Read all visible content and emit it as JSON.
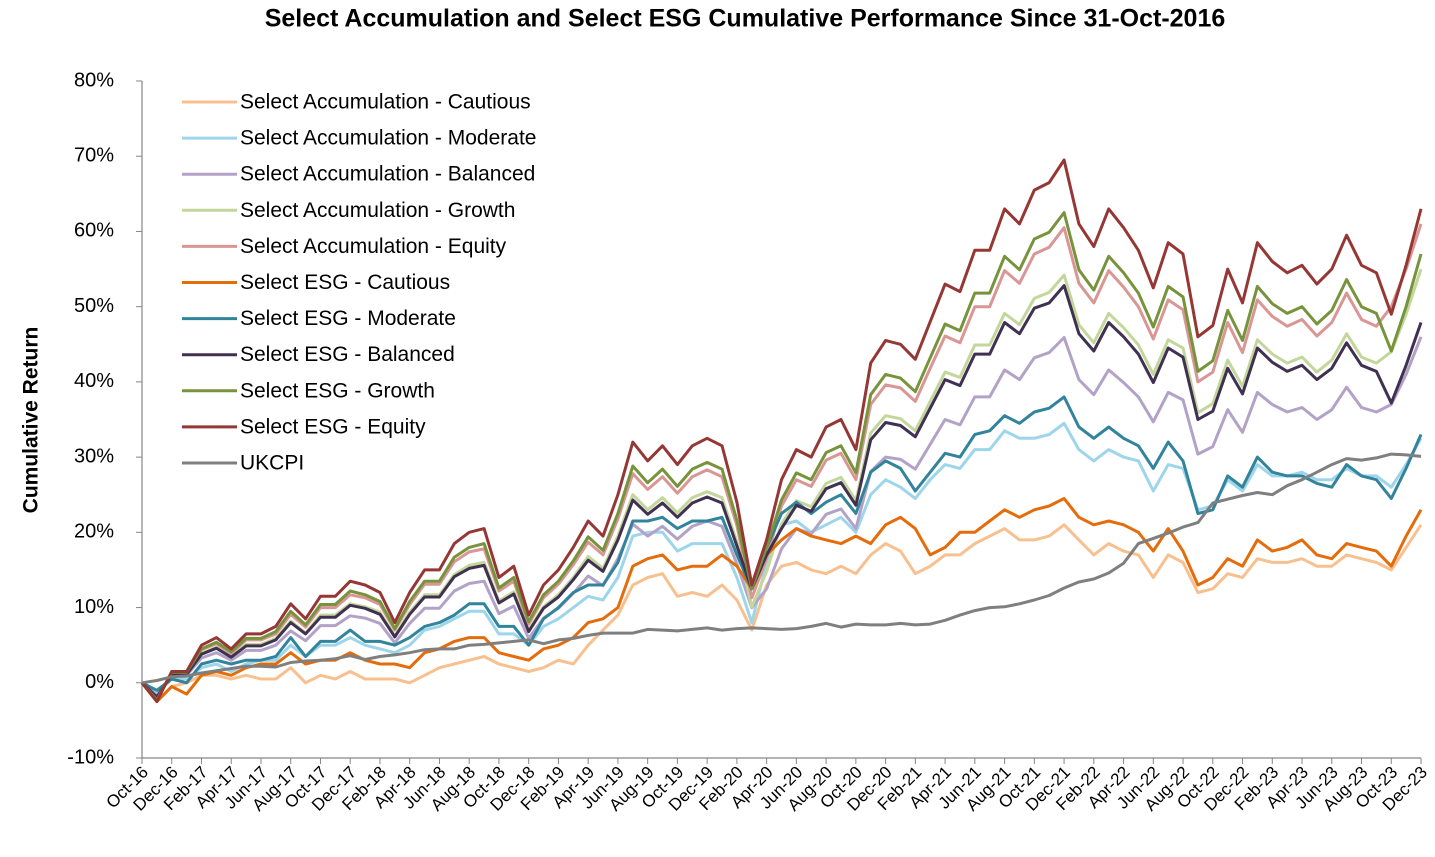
{
  "chart_data": {
    "type": "line",
    "title": "Select Accumulation  and Select ESG Cumulative Performance Since 31-Oct-2016",
    "y_label": "Cumulative Return",
    "legend": "upper left",
    "grid": false,
    "ylim": [
      -10,
      80
    ],
    "yticks": [
      {
        "value": -10,
        "label": "-10%"
      },
      {
        "value": 0,
        "label": "0%"
      },
      {
        "value": 10,
        "label": "10%"
      },
      {
        "value": 20,
        "label": "20%"
      },
      {
        "value": 30,
        "label": "30%"
      },
      {
        "value": 40,
        "label": "40%"
      },
      {
        "value": 50,
        "label": "50%"
      },
      {
        "value": 60,
        "label": "60%"
      },
      {
        "value": 70,
        "label": "70%"
      },
      {
        "value": 80,
        "label": "80%"
      }
    ],
    "categories": [
      "Oct-16",
      null,
      "Dec-16",
      null,
      "Feb-17",
      null,
      "Apr-17",
      null,
      "Jun-17",
      null,
      "Aug-17",
      null,
      "Oct-17",
      null,
      "Dec-17",
      null,
      "Feb-18",
      null,
      "Apr-18",
      null,
      "Jun-18",
      null,
      "Aug-18",
      null,
      "Oct-18",
      null,
      "Dec-18",
      null,
      "Feb-19",
      null,
      "Apr-19",
      null,
      "Jun-19",
      null,
      "Aug-19",
      null,
      "Oct-19",
      null,
      "Dec-19",
      null,
      "Feb-20",
      null,
      "Apr-20",
      null,
      "Jun-20",
      null,
      "Aug-20",
      null,
      "Oct-20",
      null,
      "Dec-20",
      null,
      "Feb-21",
      null,
      "Apr-21",
      null,
      "Jun-21",
      null,
      "Aug-21",
      null,
      "Oct-21",
      null,
      "Dec-21",
      null,
      "Feb-22",
      null,
      "Apr-22",
      null,
      "Jun-22",
      null,
      "Aug-22",
      null,
      "Oct-22",
      null,
      "Dec-22",
      null,
      "Feb-23",
      null,
      "Apr-23",
      null,
      "Jun-23",
      null,
      "Aug-23",
      null,
      "Oct-23",
      null,
      "Dec-23"
    ],
    "series": [
      {
        "name": "Select Accumulation - Cautious",
        "color": "#f8c08f",
        "values": [
          0,
          -2.5,
          -0.5,
          0,
          1,
          1,
          0.5,
          1,
          0.5,
          0.5,
          2,
          0,
          1,
          0.5,
          1.5,
          0.5,
          0.5,
          0.5,
          0,
          1,
          2,
          2.5,
          3,
          3.5,
          2.5,
          2,
          1.5,
          2,
          3,
          2.5,
          5,
          7,
          9,
          13,
          14,
          14.5,
          11.5,
          12,
          11.5,
          13,
          11,
          7,
          13,
          15.5,
          16,
          15,
          14.5,
          15.5,
          14.5,
          17,
          18.5,
          17.5,
          14.5,
          15.5,
          17,
          17,
          18.5,
          19.5,
          20.5,
          19,
          19,
          19.5,
          21,
          19,
          17,
          18.5,
          17.5,
          17,
          14,
          17,
          16,
          12,
          12.5,
          14.5,
          14,
          16.5,
          16,
          16,
          16.5,
          15.5,
          15.5,
          17,
          16.5,
          16,
          15,
          18,
          21
        ]
      },
      {
        "name": "Select Accumulation - Moderate",
        "color": "#9dd5ea",
        "values": [
          0,
          -1.5,
          0.5,
          0.5,
          2,
          2.5,
          1.5,
          2.5,
          3,
          3,
          5,
          3.5,
          5,
          5,
          6,
          5,
          4.5,
          4,
          5,
          7,
          7.5,
          8.5,
          9.5,
          9.5,
          6.5,
          6.5,
          5,
          7.5,
          8.5,
          10,
          11.5,
          11,
          14,
          19.5,
          20,
          20,
          17.5,
          18.5,
          18.5,
          18.5,
          14,
          8,
          16,
          21,
          21.5,
          20,
          21,
          22,
          20,
          25,
          27,
          26,
          24.5,
          27,
          29,
          28.5,
          31,
          31,
          33.5,
          32.5,
          32.5,
          33,
          34.5,
          31,
          29.5,
          31,
          30,
          29.5,
          25.5,
          29,
          28.5,
          23,
          23.5,
          27,
          25.5,
          29,
          27.5,
          27.5,
          28,
          27,
          27,
          28.5,
          27.5,
          27.5,
          26,
          29,
          32.5
        ]
      },
      {
        "name": "Select Accumulation - Balanced",
        "color": "#b3a2c7",
        "values": [
          0,
          -1.7,
          1,
          1,
          3.3,
          4,
          3,
          4.3,
          4.3,
          5,
          6.9,
          5.6,
          7.6,
          7.6,
          8.9,
          8.6,
          7.9,
          5.3,
          7.9,
          9.9,
          9.9,
          12.2,
          13.2,
          13.5,
          9.2,
          10.2,
          5.9,
          8.6,
          9.9,
          11.9,
          14.2,
          12.9,
          16.5,
          21.1,
          19.5,
          20.8,
          19.1,
          20.8,
          21.5,
          20.8,
          15.8,
          10,
          12.5,
          17.8,
          20.5,
          19.8,
          22.4,
          23.1,
          20.5,
          28.1,
          30,
          29.7,
          28.4,
          31.7,
          35,
          34.3,
          38,
          38,
          41.6,
          40.3,
          43.2,
          43.9,
          45.9,
          40.3,
          38.3,
          41.6,
          39.9,
          38,
          34.7,
          38.6,
          37.6,
          30.4,
          31.4,
          36.3,
          33.3,
          38.6,
          37,
          36,
          36.6,
          35,
          36.3,
          39.3,
          36.6,
          36,
          37,
          41,
          46
        ]
      },
      {
        "name": "Select Accumulation - Growth",
        "color": "#c3d69b",
        "values": [
          0,
          -2,
          1.2,
          1.2,
          3.9,
          4.7,
          3.5,
          5.1,
          5.1,
          5.9,
          8.2,
          6.6,
          9,
          9,
          10.5,
          10.1,
          9.4,
          6.2,
          9.4,
          11.7,
          11.7,
          14.4,
          15.6,
          16,
          10.9,
          12.1,
          7,
          10.1,
          11.7,
          14,
          16.8,
          15.2,
          19.5,
          25,
          23,
          24.6,
          22.6,
          24.6,
          25.4,
          24.6,
          18.7,
          10.1,
          14.8,
          21.1,
          24.2,
          23.4,
          26.5,
          27.3,
          24.2,
          33.2,
          35.5,
          35.1,
          33.5,
          37.4,
          41.3,
          40.6,
          44.9,
          44.9,
          49.1,
          47.6,
          51.1,
          51.9,
          54.2,
          47.6,
          45.2,
          49.1,
          47.2,
          44.9,
          41,
          45.6,
          44.5,
          35.9,
          37.1,
          42.9,
          39.4,
          45.6,
          43.7,
          42.5,
          43.3,
          41.3,
          42.9,
          46.4,
          43.3,
          42.5,
          44,
          49,
          55
        ]
      },
      {
        "name": "Select Accumulation - Equity",
        "color": "#d99694",
        "values": [
          0,
          -2.2,
          1.3,
          1.3,
          4.4,
          5.2,
          3.9,
          5.7,
          5.7,
          6.5,
          9.1,
          7.4,
          10,
          10,
          11.7,
          11.3,
          10.4,
          7,
          10.4,
          13.1,
          13.1,
          16.1,
          17.4,
          17.8,
          12.2,
          13.5,
          7.8,
          11.3,
          13.1,
          15.7,
          18.7,
          17,
          21.8,
          27.8,
          25.7,
          27.4,
          25.2,
          27.4,
          28.3,
          27.4,
          20.9,
          11.3,
          16.5,
          23.5,
          27,
          26.1,
          29.6,
          30.5,
          27,
          37,
          39.6,
          39.2,
          37.4,
          41.8,
          46.1,
          45.2,
          50,
          50,
          54.8,
          53.1,
          57,
          57.9,
          60.5,
          53.1,
          50.5,
          54.8,
          52.6,
          50,
          45.7,
          50.9,
          49.6,
          40,
          41.3,
          47.9,
          43.9,
          50.9,
          48.7,
          47.4,
          48.3,
          46.1,
          47.9,
          51.8,
          48.3,
          47.4,
          50,
          55,
          61
        ]
      },
      {
        "name": "Select ESG - Cautious",
        "color": "#e46c0a",
        "values": [
          0,
          -2.5,
          -0.5,
          -1.5,
          1,
          1.5,
          1,
          2,
          2.5,
          2.5,
          4,
          2.5,
          3,
          3,
          4,
          3,
          2.5,
          2.5,
          2,
          4,
          4.5,
          5.5,
          6,
          6,
          4,
          3.5,
          3,
          4.5,
          5,
          6,
          8,
          8.5,
          10,
          15.5,
          16.5,
          17,
          15,
          15.5,
          15.5,
          17,
          15.5,
          12.5,
          17,
          19,
          20.5,
          19.5,
          19,
          18.5,
          19.5,
          18.5,
          21,
          22,
          20.5,
          17,
          18,
          20,
          20,
          21.5,
          23,
          22,
          23,
          23.5,
          24.5,
          22,
          21,
          21.5,
          21,
          20,
          17.5,
          20.5,
          17.5,
          13,
          14,
          16.5,
          15.5,
          19,
          17.5,
          18,
          19,
          17,
          16.5,
          18.5,
          18,
          17.5,
          15.5,
          19.5,
          23
        ]
      },
      {
        "name": "Select ESG - Moderate",
        "color": "#31849b",
        "values": [
          0,
          -1,
          0.5,
          0,
          2.5,
          3,
          2.5,
          3,
          3,
          3.5,
          6,
          3.5,
          5.5,
          5.5,
          7,
          5.5,
          5.5,
          5,
          6,
          7.5,
          8,
          9,
          10.5,
          10.5,
          7.5,
          7.5,
          5,
          8.5,
          10,
          12,
          13,
          13,
          16,
          21.5,
          21.5,
          22,
          20.5,
          21.5,
          21.5,
          22,
          17,
          12.5,
          18,
          22.5,
          24,
          22.5,
          24,
          25,
          22.5,
          28,
          29.5,
          28.5,
          25.5,
          28,
          30.5,
          30,
          33,
          33.5,
          35.5,
          34.5,
          36,
          36.5,
          38,
          34,
          32.5,
          34,
          32.5,
          31.5,
          28.5,
          32,
          29.5,
          22.5,
          23,
          27.5,
          26,
          30,
          28,
          27.5,
          27.5,
          26.5,
          26,
          29,
          27.5,
          27,
          24.5,
          28.5,
          33
        ]
      },
      {
        "name": "Select ESG - Balanced",
        "color": "#403152",
        "values": [
          0,
          -1.9,
          1.1,
          1.1,
          3.8,
          4.6,
          3.4,
          4.9,
          4.9,
          5.7,
          8,
          6.5,
          8.7,
          8.7,
          10.3,
          9.9,
          9.1,
          6.1,
          9.1,
          11.4,
          11.4,
          14.1,
          15.2,
          15.6,
          10.6,
          11.8,
          6.8,
          9.9,
          11.4,
          13.7,
          16.3,
          14.8,
          19,
          24.3,
          22.4,
          23.9,
          22,
          23.9,
          24.7,
          23.9,
          18.2,
          12.5,
          17,
          20.5,
          23.6,
          22.8,
          25.8,
          26.6,
          23.6,
          32.3,
          34.6,
          34.2,
          32.7,
          36.5,
          40.3,
          39.5,
          43.7,
          43.7,
          47.9,
          46.4,
          49.8,
          50.5,
          52.8,
          46.4,
          44.1,
          47.9,
          46,
          43.7,
          39.9,
          44.5,
          43.3,
          35,
          36.1,
          41.8,
          38.4,
          44.5,
          42.6,
          41.4,
          42.2,
          40.3,
          41.8,
          45.2,
          42.2,
          41.4,
          37.2,
          42.2,
          47.9
        ]
      },
      {
        "name": "Select ESG - Growth",
        "color": "#77933c",
        "values": [
          0,
          -2.3,
          1.4,
          1.4,
          4.5,
          5.4,
          4.1,
          5.9,
          5.9,
          6.8,
          9.5,
          7.7,
          10.4,
          10.4,
          12.2,
          11.7,
          10.8,
          7.2,
          10.8,
          13.5,
          13.5,
          16.7,
          18,
          18.5,
          12.6,
          14,
          8.1,
          11.7,
          13.5,
          16.2,
          19.4,
          17.6,
          22.5,
          28.8,
          26.6,
          28.4,
          26.1,
          28.4,
          29.3,
          28.4,
          21.6,
          12.5,
          18,
          24.3,
          27.9,
          27,
          30.6,
          31.5,
          27.9,
          38.3,
          41,
          40.5,
          38.7,
          43.2,
          47.7,
          46.8,
          51.8,
          51.8,
          56.7,
          54.9,
          59,
          59.9,
          62.5,
          54.9,
          52.2,
          56.7,
          54.5,
          51.8,
          47.3,
          52.7,
          51.3,
          41.4,
          42.8,
          49.5,
          45.5,
          52.7,
          50.4,
          49.1,
          50,
          47.7,
          49.5,
          53.6,
          50,
          49.1,
          44.1,
          50,
          57
        ]
      },
      {
        "name": "Select ESG - Equity",
        "color": "#953735",
        "values": [
          0,
          -2.5,
          1.5,
          1.5,
          5,
          6,
          4.5,
          6.5,
          6.5,
          7.5,
          10.5,
          8.5,
          11.5,
          11.5,
          13.5,
          13,
          12,
          8,
          12,
          15,
          15,
          18.5,
          20,
          20.5,
          14,
          15.5,
          9,
          13,
          15,
          18,
          21.5,
          19.5,
          25,
          32,
          29.5,
          31.5,
          29,
          31.5,
          32.5,
          31.5,
          24,
          13,
          19,
          27,
          31,
          30,
          34,
          35,
          31,
          42.5,
          45.5,
          45,
          43,
          48,
          53,
          52,
          57.5,
          57.5,
          63,
          61,
          65.5,
          66.5,
          69.5,
          61,
          58,
          63,
          60.5,
          57.5,
          52.5,
          58.5,
          57,
          46,
          47.5,
          55,
          50.5,
          58.5,
          56,
          54.5,
          55.5,
          53,
          55,
          59.5,
          55.5,
          54.5,
          49,
          55.5,
          63
        ]
      },
      {
        "name": "UKCPI",
        "color": "#7f7f7f",
        "values": [
          0,
          0.3,
          0.8,
          0.9,
          1.3,
          1.6,
          1.9,
          2.2,
          2.2,
          2.1,
          2.7,
          2.9,
          3.0,
          3.2,
          3.6,
          3.1,
          3.5,
          3.7,
          4.0,
          4.4,
          4.5,
          4.5,
          5.0,
          5.1,
          5.3,
          5.5,
          5.7,
          5.2,
          5.7,
          5.9,
          6.3,
          6.6,
          6.6,
          6.6,
          7.1,
          7.0,
          6.9,
          7.1,
          7.3,
          7.0,
          7.2,
          7.3,
          7.2,
          7.1,
          7.2,
          7.5,
          7.9,
          7.4,
          7.8,
          7.7,
          7.7,
          7.9,
          7.7,
          7.8,
          8.3,
          9.0,
          9.6,
          10.0,
          10.1,
          10.5,
          11.0,
          11.6,
          12.6,
          13.4,
          13.8,
          14.6,
          15.9,
          18.5,
          19.2,
          19.9,
          20.7,
          21.3,
          23.9,
          24.4,
          24.9,
          25.3,
          25.0,
          26.2,
          27.0,
          28.0,
          29.0,
          29.8,
          29.6,
          29.9,
          30.4,
          30.3,
          30.1
        ]
      }
    ]
  }
}
